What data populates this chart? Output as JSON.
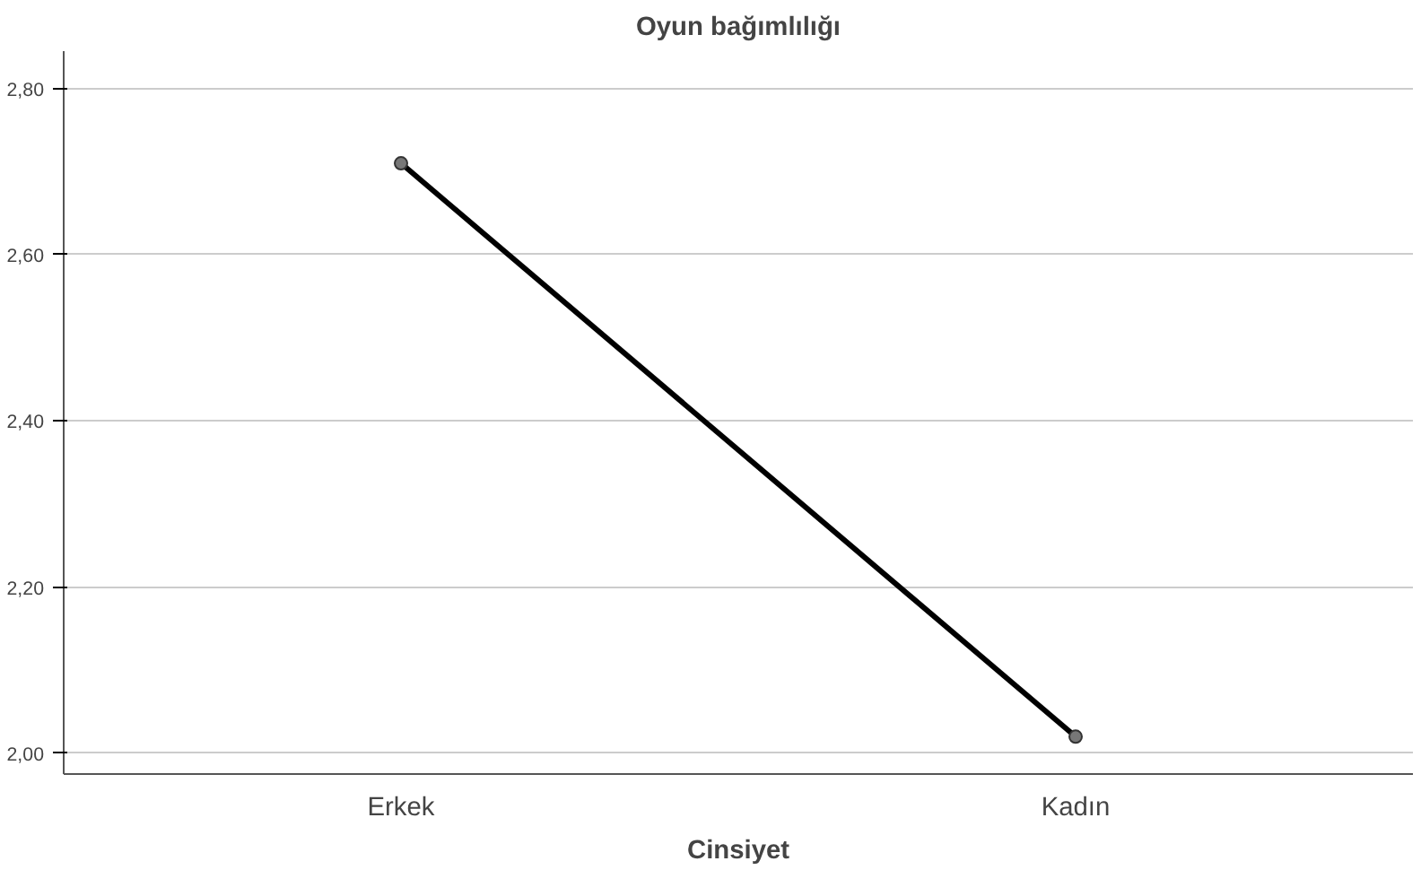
{
  "chart_data": {
    "type": "line",
    "title": "Oyun bağımlılığı",
    "xlabel": "Cinsiyet",
    "categories": [
      "Erkek",
      "Kadın"
    ],
    "series": [
      {
        "color": "#000000",
        "values": [
          2.71,
          2.02
        ]
      }
    ],
    "ylim": [
      1.975,
      2.845
    ],
    "yticks": [
      {
        "value": 2.0,
        "label": "2,00"
      },
      {
        "value": 2.2,
        "label": "2,20"
      },
      {
        "value": 2.4,
        "label": "2,40"
      },
      {
        "value": 2.6,
        "label": "2,60"
      },
      {
        "value": 2.8,
        "label": "2,80"
      }
    ],
    "grid": "y",
    "marker": "circle",
    "line_style": "solid"
  }
}
